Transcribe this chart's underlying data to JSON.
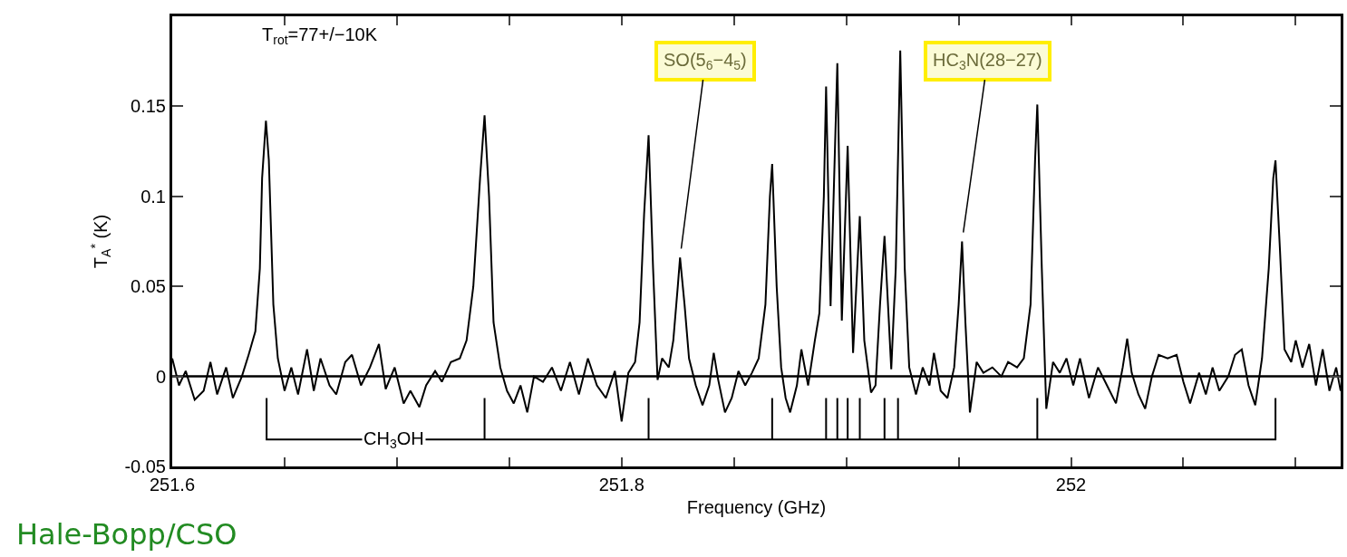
{
  "chart_data": {
    "type": "line",
    "xlabel": "Frequency (GHz)",
    "ylabel": "T$_{A}$$^{*}$ (K)",
    "xlim": [
      251.6,
      252.12
    ],
    "ylim": [
      -0.05,
      0.2
    ],
    "xticks": [
      {
        "value": 251.6,
        "label": "251.6"
      },
      {
        "value": 251.65,
        "label": null
      },
      {
        "value": 251.7,
        "label": null
      },
      {
        "value": 251.75,
        "label": null
      },
      {
        "value": 251.8,
        "label": "251.8"
      },
      {
        "value": 251.85,
        "label": null
      },
      {
        "value": 251.9,
        "label": null
      },
      {
        "value": 251.95,
        "label": null
      },
      {
        "value": 252,
        "label": "252"
      },
      {
        "value": 252.05,
        "label": null
      },
      {
        "value": 252.1,
        "label": null
      }
    ],
    "yticks": [
      -0.05,
      0,
      0.05,
      0.1,
      0.15
    ],
    "marker": "none",
    "line_style": "solid",
    "ref_lines": [
      {
        "axis": "y",
        "value": 0,
        "label": null,
        "color": "#000000"
      }
    ],
    "series": [
      {
        "color": "#000000",
        "x": [
          251.6,
          251.603,
          251.606,
          251.61,
          251.614,
          251.617,
          251.62,
          251.624,
          251.627,
          251.631,
          251.634,
          251.637,
          251.639,
          251.64,
          251.6417,
          251.643,
          251.645,
          251.647,
          251.65,
          251.653,
          251.656,
          251.66,
          251.663,
          251.666,
          251.67,
          251.673,
          251.677,
          251.68,
          251.684,
          251.688,
          251.692,
          251.695,
          251.699,
          251.703,
          251.706,
          251.71,
          251.713,
          251.717,
          251.72,
          251.724,
          251.728,
          251.731,
          251.734,
          251.737,
          251.739,
          251.741,
          251.743,
          251.746,
          251.749,
          251.752,
          251.755,
          251.758,
          251.761,
          251.765,
          251.769,
          251.773,
          251.777,
          251.781,
          251.785,
          251.789,
          251.793,
          251.797,
          251.8,
          251.803,
          251.806,
          251.808,
          251.81,
          251.812,
          251.814,
          251.816,
          251.818,
          251.821,
          251.823,
          251.825,
          251.826,
          251.828,
          251.83,
          251.833,
          251.836,
          251.839,
          251.841,
          251.843,
          251.846,
          251.849,
          251.852,
          251.855,
          251.858,
          251.861,
          251.864,
          251.866,
          251.867,
          251.869,
          251.871,
          251.873,
          251.875,
          251.878,
          251.88,
          251.883,
          251.886,
          251.888,
          251.89,
          251.891,
          251.893,
          251.896,
          251.898,
          251.9006,
          251.903,
          251.906,
          251.908,
          251.911,
          251.913,
          251.915,
          251.917,
          251.92,
          251.922,
          251.924,
          251.926,
          251.928,
          251.931,
          251.934,
          251.937,
          251.939,
          251.942,
          251.945,
          251.948,
          251.95,
          251.9515,
          251.953,
          251.955,
          251.958,
          251.961,
          251.965,
          251.969,
          251.972,
          251.976,
          251.979,
          251.982,
          251.984,
          251.985,
          251.987,
          251.989,
          251.992,
          251.995,
          251.998,
          252.001,
          252.004,
          252.008,
          252.012,
          252.016,
          252.02,
          252.023,
          252.025,
          252.027,
          252.03,
          252.033,
          252.036,
          252.039,
          252.043,
          252.047,
          252.05,
          252.053,
          252.057,
          252.06,
          252.063,
          252.066,
          252.07,
          252.073,
          252.076,
          252.079,
          252.082,
          252.085,
          252.088,
          252.09,
          252.091,
          252.093,
          252.095,
          252.098,
          252.1,
          252.103,
          252.106,
          252.109,
          252.112,
          252.115,
          252.118,
          252.12
        ],
        "values": [
          0.01,
          -0.005,
          0.003,
          -0.013,
          -0.008,
          0.008,
          -0.01,
          0.005,
          -0.012,
          0.0,
          0.012,
          0.025,
          0.06,
          0.11,
          0.142,
          0.12,
          0.04,
          0.01,
          -0.008,
          0.005,
          -0.01,
          0.015,
          -0.008,
          0.01,
          -0.005,
          -0.01,
          0.008,
          0.012,
          -0.005,
          0.005,
          0.018,
          -0.007,
          0.005,
          -0.015,
          -0.008,
          -0.017,
          -0.005,
          0.003,
          -0.003,
          0.008,
          0.01,
          0.02,
          0.05,
          0.11,
          0.145,
          0.1,
          0.03,
          0.005,
          -0.008,
          -0.015,
          -0.005,
          -0.02,
          0.0,
          -0.003,
          0.005,
          -0.008,
          0.008,
          -0.01,
          0.01,
          -0.005,
          -0.012,
          0.003,
          -0.025,
          0.002,
          0.008,
          0.03,
          0.09,
          0.134,
          0.06,
          -0.002,
          0.01,
          0.005,
          0.02,
          0.05,
          0.066,
          0.04,
          0.01,
          -0.005,
          -0.016,
          -0.005,
          0.013,
          -0.002,
          -0.02,
          -0.012,
          0.003,
          -0.005,
          0.002,
          0.01,
          0.04,
          0.1,
          0.118,
          0.05,
          0.005,
          -0.012,
          -0.02,
          -0.005,
          0.015,
          -0.005,
          0.02,
          0.035,
          0.1,
          0.161,
          0.039,
          0.174,
          0.031,
          0.128,
          0.013,
          0.089,
          0.02,
          -0.009,
          -0.005,
          0.04,
          0.078,
          0.004,
          0.06,
          0.181,
          0.06,
          0.005,
          -0.01,
          0.005,
          -0.005,
          0.013,
          -0.008,
          -0.012,
          0.005,
          0.04,
          0.075,
          0.03,
          -0.02,
          0.008,
          0.002,
          0.005,
          0.0,
          0.008,
          0.005,
          0.01,
          0.04,
          0.12,
          0.151,
          0.06,
          -0.018,
          0.008,
          0.002,
          0.01,
          -0.005,
          0.01,
          -0.012,
          0.005,
          -0.005,
          -0.015,
          0.005,
          0.021,
          0.002,
          -0.01,
          -0.018,
          0.0,
          0.012,
          0.01,
          0.012,
          -0.003,
          -0.015,
          0.002,
          -0.01,
          0.005,
          -0.008,
          0.0,
          0.012,
          0.015,
          -0.005,
          -0.016,
          0.01,
          0.06,
          0.11,
          0.12,
          0.07,
          0.015,
          0.008,
          0.02,
          0.005,
          0.018,
          -0.005,
          0.015,
          -0.008,
          0.005,
          -0.008
        ]
      },
      {
        "color": "#000000",
        "x": [
          251.642,
          251.642,
          251.642,
          251.739,
          251.739,
          251.739,
          251.812,
          251.812,
          251.812,
          251.867,
          251.867,
          251.867,
          251.891,
          251.891,
          251.891,
          251.896,
          251.896,
          251.896,
          251.9006,
          251.9006,
          251.9006,
          251.906,
          251.906,
          251.906,
          251.917,
          251.917,
          251.917,
          251.923,
          251.923,
          251.923,
          251.985,
          251.985,
          251.985,
          252.091,
          252.091,
          252.091
        ],
        "values": [
          -0.035,
          -0.012,
          -0.035,
          -0.035,
          -0.012,
          -0.035,
          -0.035,
          -0.012,
          -0.035,
          -0.035,
          -0.012,
          -0.035,
          -0.035,
          -0.012,
          -0.035,
          -0.035,
          -0.012,
          -0.035,
          -0.035,
          -0.012,
          -0.035,
          -0.035,
          -0.012,
          -0.035,
          -0.035,
          -0.012,
          -0.035,
          -0.035,
          -0.012,
          -0.035,
          -0.035,
          -0.012,
          -0.035,
          -0.035,
          -0.012,
          -0.035
        ]
      }
    ],
    "annotations": [
      "T$_{rot}$=77+/−10K",
      "CH$_{3}$OH",
      {
        "text": "SO(5$_{6}$−4$_{5}$)",
        "x": 251.826,
        "y": 0.066
      },
      {
        "text": "HC$_{3}$N(28−27)",
        "x": 251.9515,
        "y": 0.075
      },
      "Hale-Bopp/CSO"
    ]
  }
}
